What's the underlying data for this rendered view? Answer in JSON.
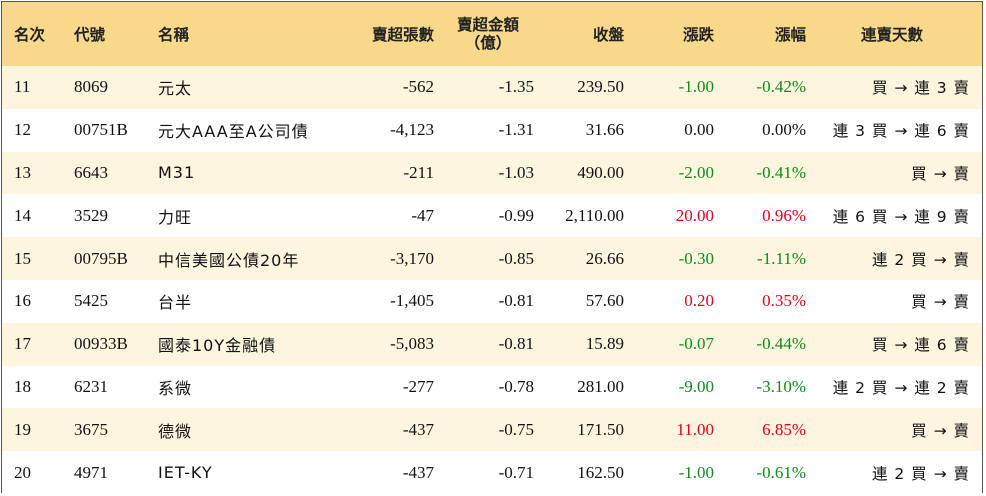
{
  "headers": {
    "rank": "名次",
    "code": "代號",
    "name": "名稱",
    "net_sell_shares": "賣超張數",
    "net_sell_amount_line1": "賣超金額",
    "net_sell_amount_line2": "（億）",
    "close": "收盤",
    "change": "漲跌",
    "pct": "漲幅",
    "streak": "連賣天數"
  },
  "colors": {
    "header_bg": "#f8d98b",
    "stripe_bg": "#fdf5de",
    "up": "#e0001b",
    "down": "#0d8a1c"
  },
  "rows": [
    {
      "rank": "11",
      "code": "8069",
      "name": "元太",
      "shares": "-562",
      "amount": "-1.35",
      "close": "239.50",
      "change": "-1.00",
      "pct": "-0.42%",
      "dir": "down",
      "streak": "買 → 連 3 賣"
    },
    {
      "rank": "12",
      "code": "00751B",
      "name": "元大AAA至A公司債",
      "shares": "-4,123",
      "amount": "-1.31",
      "close": "31.66",
      "change": "0.00",
      "pct": "0.00%",
      "dir": "flat",
      "streak": "連 3 買 → 連 6 賣"
    },
    {
      "rank": "13",
      "code": "6643",
      "name": "M31",
      "shares": "-211",
      "amount": "-1.03",
      "close": "490.00",
      "change": "-2.00",
      "pct": "-0.41%",
      "dir": "down",
      "streak": "買 → 賣"
    },
    {
      "rank": "14",
      "code": "3529",
      "name": "力旺",
      "shares": "-47",
      "amount": "-0.99",
      "close": "2,110.00",
      "change": "20.00",
      "pct": "0.96%",
      "dir": "up",
      "streak": "連 6 買 → 連 9 賣"
    },
    {
      "rank": "15",
      "code": "00795B",
      "name": "中信美國公債20年",
      "shares": "-3,170",
      "amount": "-0.85",
      "close": "26.66",
      "change": "-0.30",
      "pct": "-1.11%",
      "dir": "down",
      "streak": "連 2 買 → 賣"
    },
    {
      "rank": "16",
      "code": "5425",
      "name": "台半",
      "shares": "-1,405",
      "amount": "-0.81",
      "close": "57.60",
      "change": "0.20",
      "pct": "0.35%",
      "dir": "up",
      "streak": "買 → 賣"
    },
    {
      "rank": "17",
      "code": "00933B",
      "name": "國泰10Y金融債",
      "shares": "-5,083",
      "amount": "-0.81",
      "close": "15.89",
      "change": "-0.07",
      "pct": "-0.44%",
      "dir": "down",
      "streak": "買 → 連 6 賣"
    },
    {
      "rank": "18",
      "code": "6231",
      "name": "系微",
      "shares": "-277",
      "amount": "-0.78",
      "close": "281.00",
      "change": "-9.00",
      "pct": "-3.10%",
      "dir": "down",
      "streak": "連 2 買 → 連 2 賣"
    },
    {
      "rank": "19",
      "code": "3675",
      "name": "德微",
      "shares": "-437",
      "amount": "-0.75",
      "close": "171.50",
      "change": "11.00",
      "pct": "6.85%",
      "dir": "up",
      "streak": "買 → 賣"
    },
    {
      "rank": "20",
      "code": "4971",
      "name": "IET-KY",
      "shares": "-437",
      "amount": "-0.71",
      "close": "162.50",
      "change": "-1.00",
      "pct": "-0.61%",
      "dir": "down",
      "streak": "連 2 買 → 賣"
    }
  ]
}
